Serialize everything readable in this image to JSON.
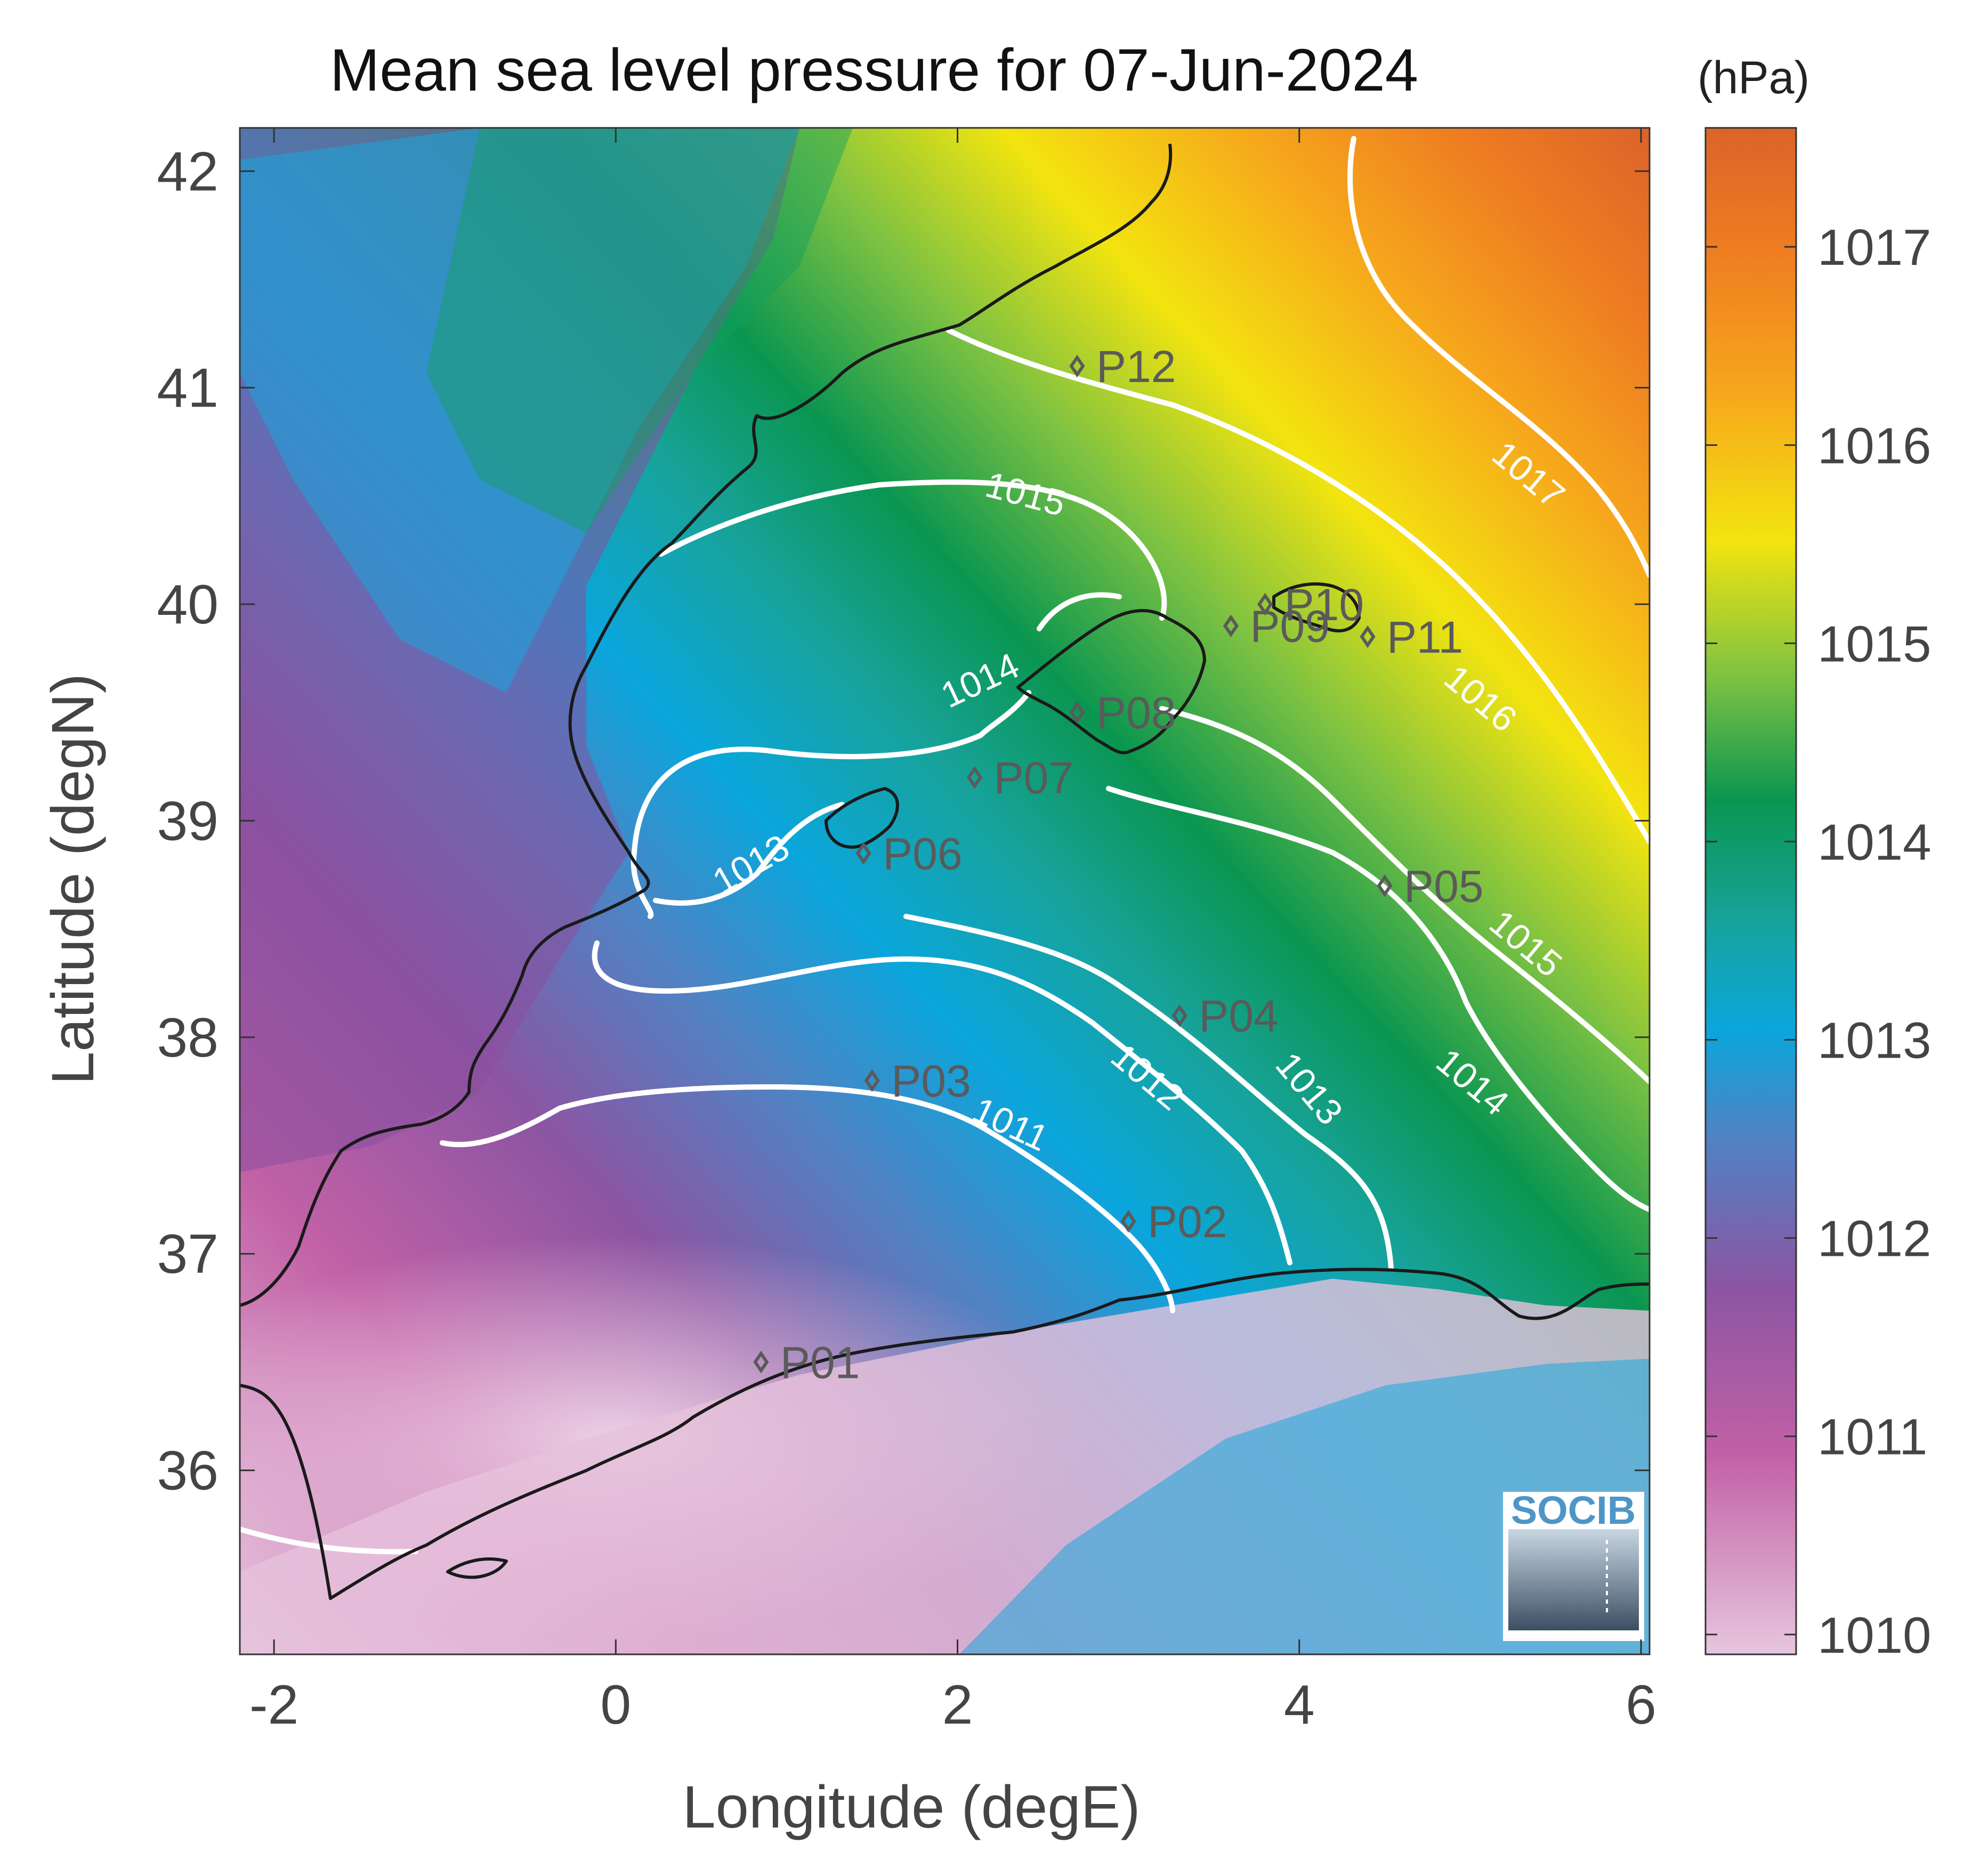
{
  "title": "Mean sea level pressure for 07-Jun-2024",
  "xlabel": "Longitude (degE)",
  "ylabel": "Latitude (degN)",
  "colorbar_unit": "(hPa)",
  "logo_text": "SOCIB",
  "x_ticks": [
    "-2",
    "0",
    "2",
    "4",
    "6"
  ],
  "y_ticks": [
    "42",
    "41",
    "40",
    "39",
    "38",
    "37",
    "36"
  ],
  "colorbar_ticks": [
    "1017",
    "1016",
    "1015",
    "1014",
    "1013",
    "1012",
    "1011",
    "1010"
  ],
  "contour_labels": [
    "1017",
    "1016",
    "1015",
    "1015",
    "1014",
    "1014",
    "1013",
    "1013",
    "1012",
    "1011"
  ],
  "stations": [
    {
      "name": "P01",
      "lon": 0.85,
      "lat": 36.5
    },
    {
      "name": "P02",
      "lon": 3.0,
      "lat": 37.15
    },
    {
      "name": "P03",
      "lon": 1.5,
      "lat": 37.8
    },
    {
      "name": "P04",
      "lon": 3.3,
      "lat": 38.1
    },
    {
      "name": "P05",
      "lon": 4.5,
      "lat": 38.7
    },
    {
      "name": "P06",
      "lon": 1.45,
      "lat": 38.85
    },
    {
      "name": "P07",
      "lon": 2.1,
      "lat": 39.2
    },
    {
      "name": "P08",
      "lon": 2.7,
      "lat": 39.5
    },
    {
      "name": "P09",
      "lon": 3.6,
      "lat": 39.9
    },
    {
      "name": "P10",
      "lon": 3.8,
      "lat": 40.0
    },
    {
      "name": "P11",
      "lon": 4.4,
      "lat": 39.85
    },
    {
      "name": "P12",
      "lon": 2.7,
      "lat": 41.1
    }
  ],
  "chart_data": {
    "type": "heatmap",
    "title": "Mean sea level pressure for 07-Jun-2024",
    "xlabel": "Longitude (degE)",
    "ylabel": "Latitude (degN)",
    "xlim": [
      -2.2,
      6.05
    ],
    "ylim": [
      35.15,
      42.2
    ],
    "colorbar": {
      "unit": "(hPa)",
      "range": [
        1009.9,
        1017.6
      ]
    },
    "contour_levels": [
      1011,
      1012,
      1013,
      1014,
      1015,
      1016,
      1017
    ],
    "colormap": [
      "#e6c4dd",
      "#c261a6",
      "#8a55a0",
      "#4f83c4",
      "#0aa6dc",
      "#17a39b",
      "#0a9650",
      "#7dc242",
      "#f3e40f",
      "#f6a51c",
      "#ee7d21",
      "#dc6329"
    ]
  }
}
